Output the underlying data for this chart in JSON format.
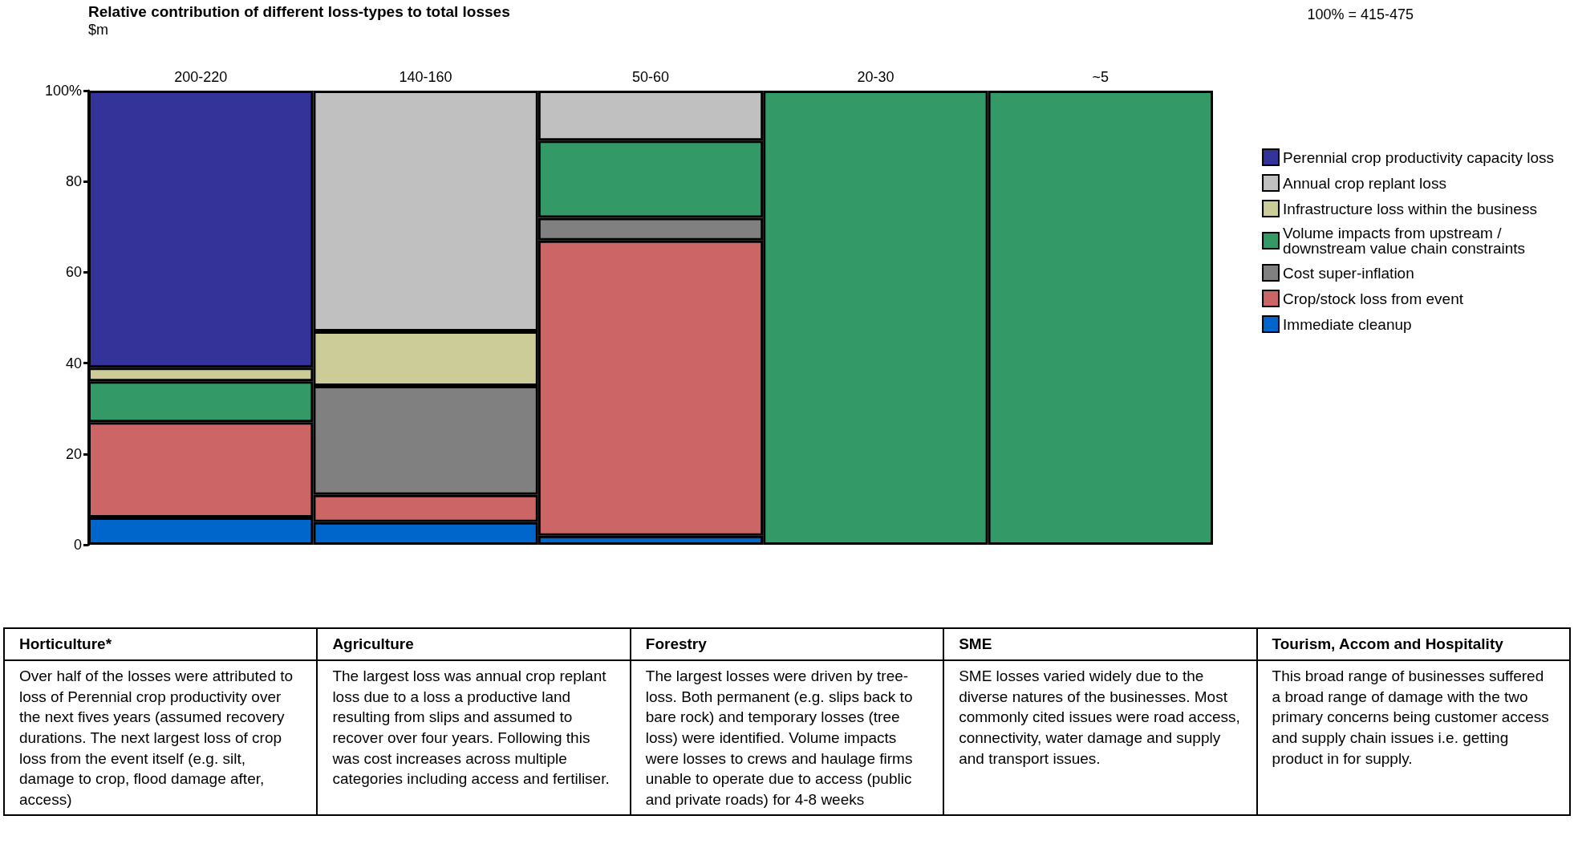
{
  "chart_data": {
    "type": "bar",
    "stacked": true,
    "title": "Relative contribution of different loss-types to total losses",
    "subtitle": "$m",
    "categories": [
      "200-220",
      "140-160",
      "50-60",
      "20-30",
      "~5"
    ],
    "series": [
      {
        "name": "Immediate cleanup",
        "color": "#0066cc",
        "values": [
          6,
          5,
          2,
          null,
          null
        ]
      },
      {
        "name": "Crop/stock loss from event",
        "color": "#cc6666",
        "values": [
          21,
          6,
          65,
          null,
          null
        ]
      },
      {
        "name": "Cost super-inflation",
        "color": "#808080",
        "values": [
          null,
          24,
          5,
          null,
          null
        ]
      },
      {
        "name": "Volume impacts from upstream / downstream value chain constraints",
        "color": "#339966",
        "values": [
          9,
          null,
          17,
          100,
          100
        ]
      },
      {
        "name": "Infrastructure loss within the business",
        "color": "#cccc99",
        "values": [
          3,
          12,
          null,
          null,
          null
        ]
      },
      {
        "name": "Annual crop replant loss",
        "color": "#c0c0c0",
        "values": [
          null,
          53,
          11,
          null,
          null
        ]
      },
      {
        "name": "Perennial crop productivity capacity loss",
        "color": "#343399",
        "values": [
          61,
          null,
          null,
          null,
          null
        ]
      }
    ],
    "ylim": [
      0,
      100
    ],
    "yticks": [
      0,
      20,
      40,
      60,
      80,
      {
        "value": 100,
        "label": "100%"
      }
    ],
    "grid": false,
    "legend": "right",
    "annotations": [
      "100% = 415-475",
      "Horticulture*",
      "Over half of the losses were attributed to loss of Perennial crop productivity over the next fives years (assumed recovery durations. The next largest loss of crop loss from the event itself (e.g. silt, damage to crop, flood damage after, access)",
      "Agriculture",
      "The largest loss was annual crop replant loss due to a loss a productive land resulting from slips and assumed to recover over four years. Following this was cost increases across multiple categories including access and fertiliser.",
      "Forestry",
      "The largest losses were driven by tree-loss. Both permanent (e.g. slips back to bare rock) and temporary losses (tree loss) were identified. Volume impacts were losses to crews and haulage firms unable to operate due to access (public and private roads) for 4-8 weeks",
      "SME",
      "SME losses varied widely due to the diverse natures of the businesses. Most commonly cited issues were road access, connectivity, water damage and supply and transport issues.",
      "Tourism, Accom and Hospitality",
      "This broad range of businesses suffered a broad range of damage with the two primary concerns being customer access and supply chain issues i.e. getting product in for supply."
    ]
  }
}
